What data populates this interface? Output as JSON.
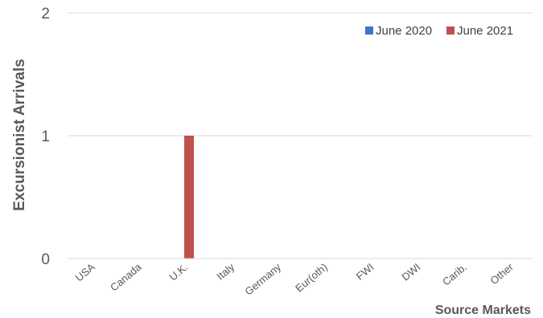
{
  "chart_data": {
    "type": "bar",
    "title": "",
    "xlabel": "Source Markets",
    "ylabel": "Excursionist Arrivals",
    "categories": [
      "USA",
      "Canada",
      "U.K.",
      "Italy",
      "Germany",
      "Eur(oth)",
      "FWI",
      "DWI",
      "Carib.",
      "Other"
    ],
    "series": [
      {
        "name": "June 2020",
        "color": "#4472C4",
        "values": [
          0,
          0,
          0,
          0,
          0,
          0,
          0,
          0,
          0,
          0
        ]
      },
      {
        "name": "June 2021",
        "color": "#C0504D",
        "values": [
          0,
          0,
          1,
          0,
          0,
          0,
          0,
          0,
          0,
          0
        ]
      }
    ],
    "ylim": [
      0,
      2
    ],
    "yticks": [
      0,
      1,
      2
    ],
    "grid": true,
    "legend_position": "top-right"
  }
}
